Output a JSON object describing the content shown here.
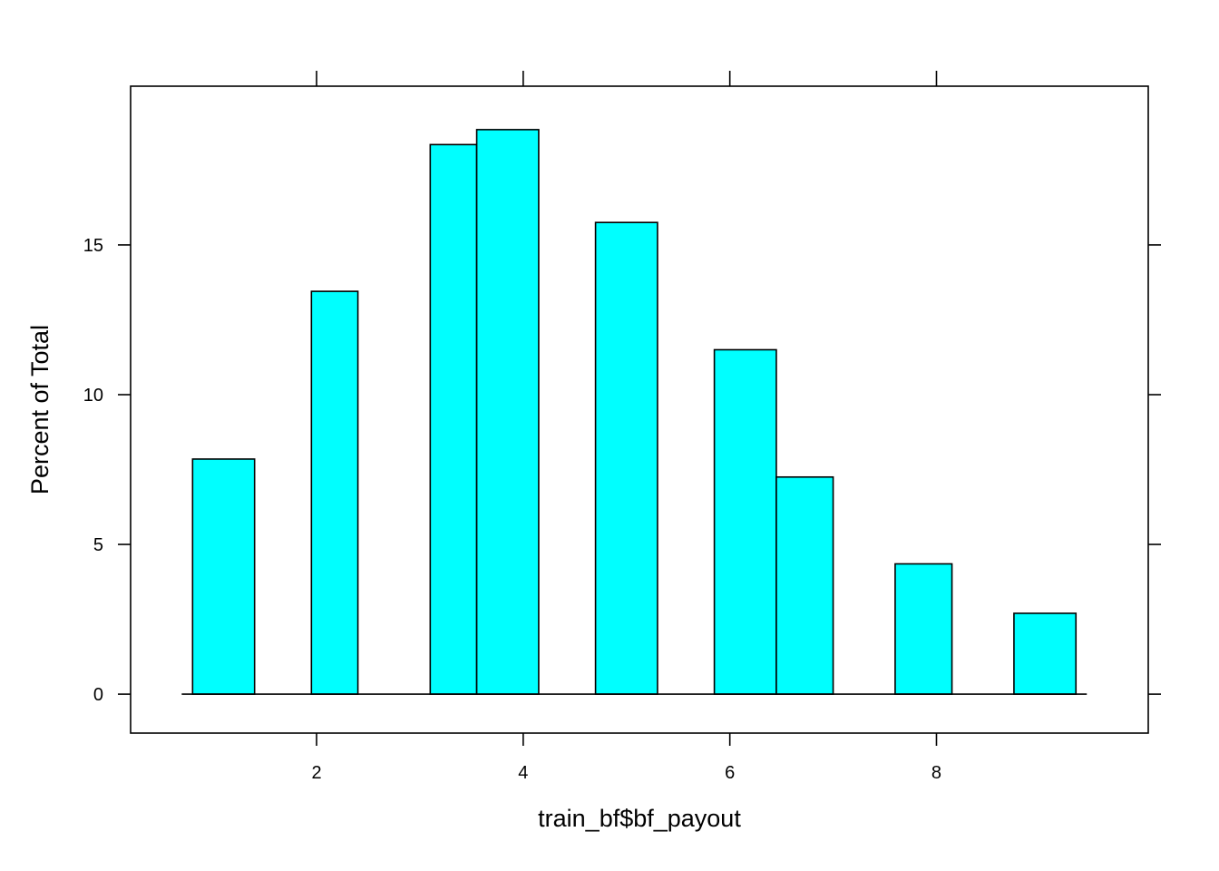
{
  "chart_data": {
    "type": "bar",
    "xlabel": "train_bf$bf_payout",
    "ylabel": "Percent of Total",
    "xlim": [
      0.2,
      10.05
    ],
    "ylim": [
      -1.3,
      20.3
    ],
    "xticks": [
      2,
      4,
      6,
      8
    ],
    "yticks": [
      0,
      5,
      10,
      15
    ],
    "fill_color": "#00FFFF",
    "grid": false,
    "bins": [
      {
        "x0": 0.8,
        "x1": 1.4,
        "value": 7.85
      },
      {
        "x0": 1.4,
        "x1": 1.95,
        "value": 0
      },
      {
        "x0": 1.95,
        "x1": 2.4,
        "value": 13.45
      },
      {
        "x0": 2.4,
        "x1": 3.1,
        "value": 0
      },
      {
        "x0": 3.1,
        "x1": 3.55,
        "value": 18.35
      },
      {
        "x0": 3.55,
        "x1": 4.15,
        "value": 18.85
      },
      {
        "x0": 4.15,
        "x1": 4.7,
        "value": 0
      },
      {
        "x0": 4.7,
        "x1": 5.3,
        "value": 15.75
      },
      {
        "x0": 5.3,
        "x1": 5.85,
        "value": 0
      },
      {
        "x0": 5.85,
        "x1": 6.45,
        "value": 11.5
      },
      {
        "x0": 6.45,
        "x1": 7.0,
        "value": 7.25
      },
      {
        "x0": 7.0,
        "x1": 7.6,
        "value": 0
      },
      {
        "x0": 7.6,
        "x1": 8.15,
        "value": 4.35
      },
      {
        "x0": 8.15,
        "x1": 8.75,
        "value": 0
      },
      {
        "x0": 8.75,
        "x1": 9.35,
        "value": 2.7
      }
    ]
  }
}
